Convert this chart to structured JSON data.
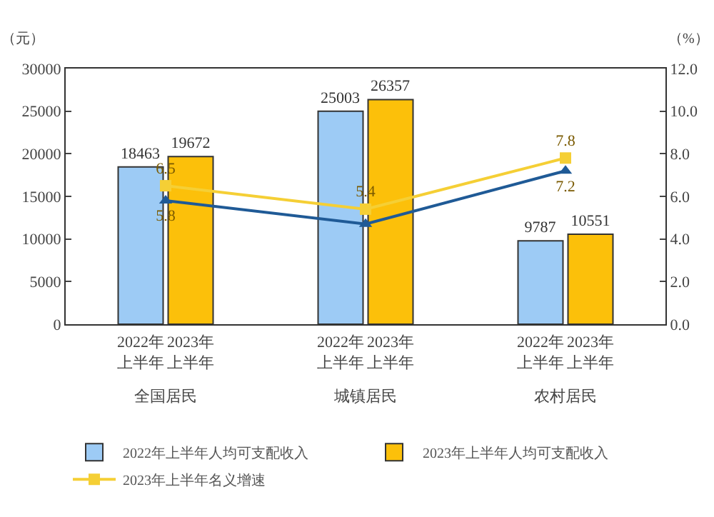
{
  "chart_data": {
    "type": "bar",
    "categories": [
      "全国居民",
      "城镇居民",
      "农村居民"
    ],
    "ylabel": "（元）",
    "y2label": "（%）",
    "ylim": [
      0,
      30000
    ],
    "yticks": [
      0,
      5000,
      10000,
      15000,
      20000,
      25000,
      30000
    ],
    "y2lim": [
      0,
      12
    ],
    "y2ticks": [
      {
        "value": 0,
        "label": "0.0"
      },
      {
        "value": 2,
        "label": "2.0"
      },
      {
        "value": 4,
        "label": "4.0"
      },
      {
        "value": 6,
        "label": "6.0"
      },
      {
        "value": 8,
        "label": "8.0"
      },
      {
        "value": 10,
        "label": "10.0"
      },
      {
        "value": 12,
        "label": "12.0"
      }
    ],
    "series": [
      {
        "name": "2022年上半年人均可支配收入",
        "color": "#9dcbf5",
        "values": [
          18463,
          25003,
          9787
        ],
        "value_labels": [
          "18463",
          "25003",
          "9787"
        ]
      },
      {
        "name": "2023年上半年人均可支配收入",
        "color": "#fcc00a",
        "values": [
          19672,
          26357,
          10551
        ],
        "value_labels": [
          "19672",
          "26357",
          "10551"
        ]
      },
      {
        "name": "2023年上半年名义增速",
        "type": "line",
        "axis": "y2",
        "color": "#f5cf35",
        "marker": "square",
        "values": [
          6.5,
          5.4,
          7.8
        ],
        "value_labels": [
          "6.5",
          "5.4",
          "7.8"
        ]
      },
      {
        "type": "line",
        "axis": "y2",
        "color": "#1f5a96",
        "marker": "triangle",
        "values": [
          5.8,
          4.7,
          7.2
        ],
        "value_labels": [
          "5.8",
          null,
          "7.2"
        ]
      }
    ],
    "annotations": [
      "2022年上半年",
      "2023年上半年",
      "2022年上半年",
      "2023年上半年",
      "2022年上半年",
      "2023年上半年"
    ],
    "legend": "bottom",
    "grid": false
  }
}
